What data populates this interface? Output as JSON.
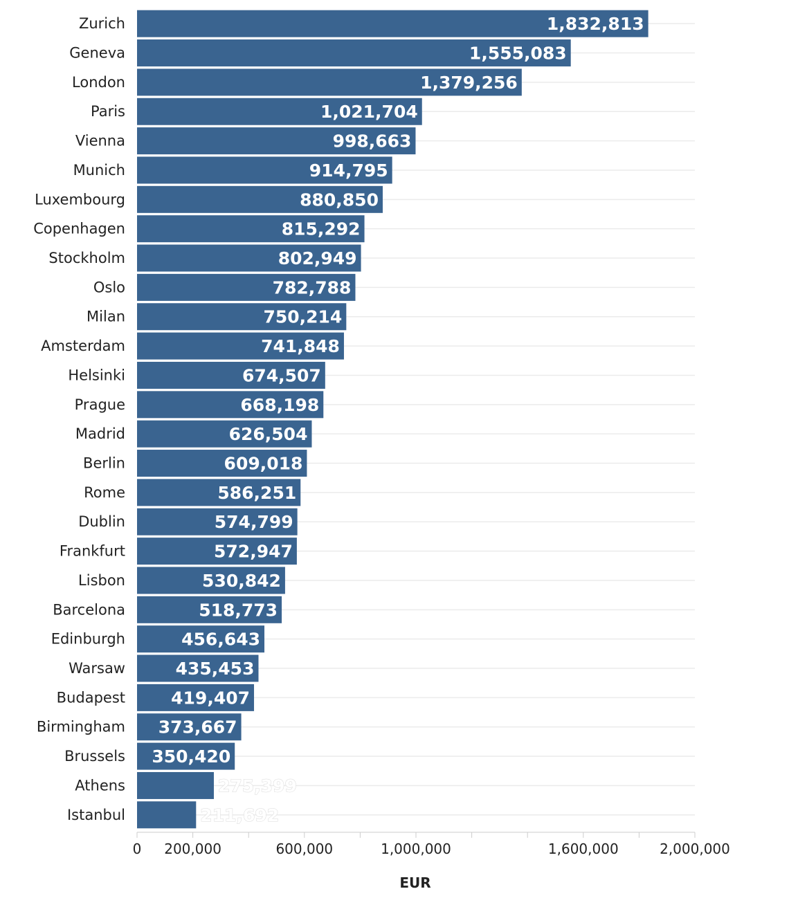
{
  "chart_data": {
    "type": "bar",
    "orientation": "horizontal",
    "title": "",
    "xlabel": "EUR",
    "ylabel": "",
    "xlim": [
      0,
      2000000
    ],
    "grid": true,
    "legend": "none",
    "bar_color": "#3a6490",
    "grid_color": "#ebebeb",
    "categories": [
      "Zurich",
      "Geneva",
      "London",
      "Paris",
      "Vienna",
      "Munich",
      "Luxembourg",
      "Copenhagen",
      "Stockholm",
      "Oslo",
      "Milan",
      "Amsterdam",
      "Helsinki",
      "Prague",
      "Madrid",
      "Berlin",
      "Rome",
      "Dublin",
      "Frankfurt",
      "Lisbon",
      "Barcelona",
      "Edinburgh",
      "Warsaw",
      "Budapest",
      "Birmingham",
      "Brussels",
      "Athens",
      "Istanbul"
    ],
    "values": [
      1832813,
      1555083,
      1379256,
      1021704,
      998663,
      914795,
      880850,
      815292,
      802949,
      782788,
      750214,
      741848,
      674507,
      668198,
      626504,
      609018,
      586251,
      574799,
      572947,
      530842,
      518773,
      456643,
      435453,
      419407,
      373667,
      350420,
      275399,
      211692
    ],
    "value_labels": [
      "1,832,813",
      "1,555,083",
      "1,379,256",
      "1,021,704",
      "998,663",
      "914,795",
      "880,850",
      "815,292",
      "802,949",
      "782,788",
      "750,214",
      "741,848",
      "674,507",
      "668,198",
      "626,504",
      "609,018",
      "586,251",
      "574,799",
      "572,947",
      "530,842",
      "518,773",
      "456,643",
      "435,453",
      "419,407",
      "373,667",
      "350,420",
      "275,399",
      "211,692"
    ],
    "x_ticks": [
      {
        "value": 0,
        "label": "0"
      },
      {
        "value": 200000,
        "label": "200,000"
      },
      {
        "value": 600000,
        "label": "600,000"
      },
      {
        "value": 1000000,
        "label": "1,000,000"
      },
      {
        "value": 1600000,
        "label": "1,600,000"
      },
      {
        "value": 2000000,
        "label": "2,000,000"
      }
    ],
    "x_gridlines": [
      0,
      200000,
      400000,
      600000,
      800000,
      1000000,
      1200000,
      1400000,
      1600000,
      1800000,
      2000000
    ]
  }
}
